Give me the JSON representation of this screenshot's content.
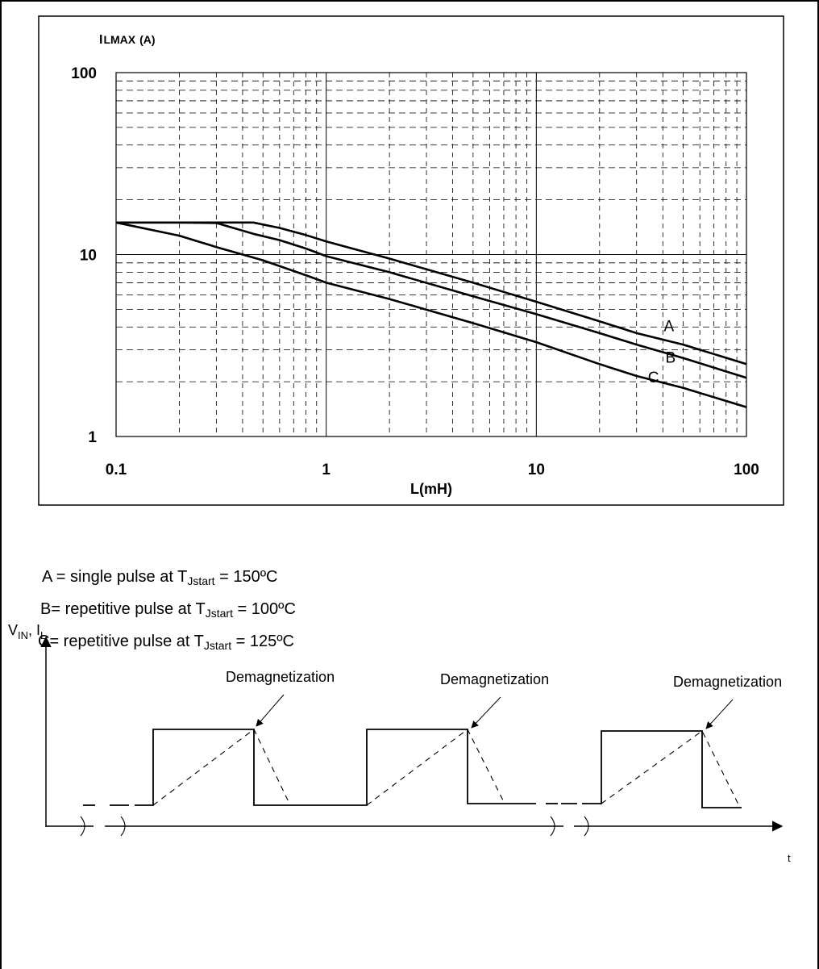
{
  "chart_data": {
    "type": "line",
    "title": "",
    "xlabel": "L(mH)",
    "ylabel_main": "I",
    "ylabel_sub": "LMAX",
    "ylabel_unit": "(A)",
    "x_scale": "log",
    "y_scale": "log",
    "xlim": [
      0.1,
      100
    ],
    "ylim": [
      1,
      100
    ],
    "x_tick_labels": [
      "0.1",
      "1",
      "10",
      "100"
    ],
    "x_tick_values": [
      0.1,
      1,
      10,
      100
    ],
    "y_tick_labels": [
      "1",
      "10",
      "100"
    ],
    "y_tick_values": [
      1,
      10,
      100
    ],
    "grid": true,
    "series": [
      {
        "name": "A",
        "x": [
          0.1,
          0.2,
          0.3,
          0.45,
          0.6,
          0.8,
          1,
          2,
          5,
          10,
          20,
          30,
          50,
          100
        ],
        "y": [
          15,
          15,
          15,
          15,
          14,
          12.8,
          11.8,
          9.5,
          7.0,
          5.5,
          4.3,
          3.7,
          3.2,
          2.5
        ]
      },
      {
        "name": "B",
        "x": [
          0.1,
          0.2,
          0.3,
          0.45,
          0.6,
          0.8,
          1,
          2,
          5,
          10,
          20,
          30,
          50,
          100
        ],
        "y": [
          15,
          15,
          14.9,
          13,
          12,
          10.8,
          9.8,
          8.0,
          5.9,
          4.7,
          3.7,
          3.2,
          2.7,
          2.1
        ]
      },
      {
        "name": "C",
        "x": [
          0.1,
          0.2,
          0.3,
          0.5,
          0.8,
          1,
          2,
          5,
          10,
          20,
          30,
          50,
          100
        ],
        "y": [
          15,
          12.7,
          11,
          9.3,
          7.7,
          7.0,
          5.7,
          4.2,
          3.3,
          2.5,
          2.15,
          1.85,
          1.45
        ]
      }
    ]
  },
  "legend": {
    "a": {
      "prefix": "A = single pulse at T",
      "sub": "Jstart",
      "suffix": " = 150ºC"
    },
    "b": {
      "prefix": "B= repetitive pulse at T",
      "sub": "Jstart",
      "suffix": " = 100ºC"
    },
    "c": {
      "prefix": "C= repetitive pulse at T",
      "sub": "Jstart",
      "suffix": " = 125ºC"
    }
  },
  "timing": {
    "y_axis_label": "V",
    "y_axis_label_sub1": "IN",
    "y_axis_label_mid": ", I",
    "y_axis_label_sub2": "L",
    "x_axis_label": "t",
    "annotations": [
      "Demagnetization",
      "Demagnetization",
      "Demagnetization"
    ]
  }
}
